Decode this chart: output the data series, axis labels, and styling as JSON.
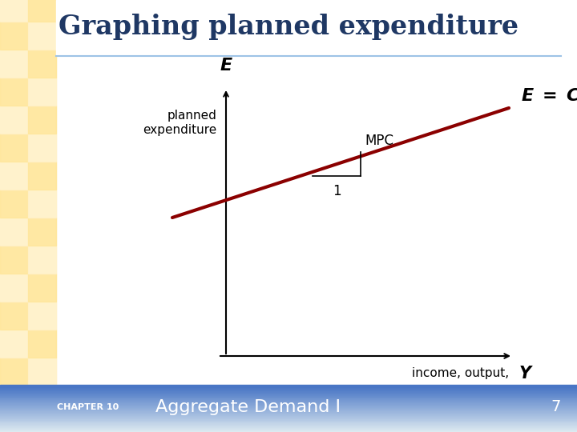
{
  "title": "Graphing planned expenditure",
  "title_color": "#1F3864",
  "title_fontsize": 24,
  "bg_color": "#FFFFFF",
  "yellow_strip_color": "#FFF2CC",
  "blue_strip_color": "#DEEAF1",
  "bottom_grad_top": "#DEEAF1",
  "bottom_grad_bot": "#4472C4",
  "axis_label_E": "E",
  "axis_label_Y": "Y",
  "ylabel_text1": "planned",
  "ylabel_text2": "expenditure",
  "xlabel_text": "income, output,",
  "mpc_label": "MPC",
  "one_label": "1",
  "chapter_text": "CHAPTER 10",
  "subtitle_text": "Aggregate Demand I",
  "page_number": "7",
  "line_color": "#8B0000",
  "separator_color": "#9DC3E6",
  "footer_color": "#4472C4"
}
